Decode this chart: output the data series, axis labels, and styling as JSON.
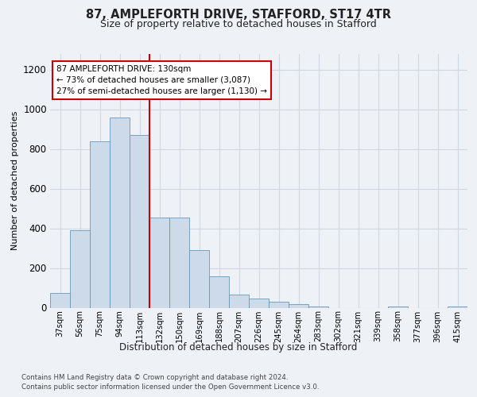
{
  "title_line1": "87, AMPLEFORTH DRIVE, STAFFORD, ST17 4TR",
  "title_line2": "Size of property relative to detached houses in Stafford",
  "xlabel": "Distribution of detached houses by size in Stafford",
  "ylabel": "Number of detached properties",
  "categories": [
    "37sqm",
    "56sqm",
    "75sqm",
    "94sqm",
    "113sqm",
    "132sqm",
    "150sqm",
    "169sqm",
    "188sqm",
    "207sqm",
    "226sqm",
    "245sqm",
    "264sqm",
    "283sqm",
    "302sqm",
    "321sqm",
    "339sqm",
    "358sqm",
    "377sqm",
    "396sqm",
    "415sqm"
  ],
  "values": [
    75,
    390,
    840,
    960,
    870,
    455,
    455,
    290,
    160,
    65,
    47,
    30,
    20,
    8,
    0,
    0,
    0,
    8,
    0,
    0,
    8
  ],
  "bar_color": "#ccdaea",
  "bar_edge_color": "#6699bb",
  "vline_color": "#cc0000",
  "vline_index": 4.5,
  "annotation_text": "87 AMPLEFORTH DRIVE: 130sqm\n← 73% of detached houses are smaller (3,087)\n27% of semi-detached houses are larger (1,130) →",
  "annotation_box_facecolor": "#ffffff",
  "annotation_box_edgecolor": "#cc0000",
  "ylim": [
    0,
    1280
  ],
  "yticks": [
    0,
    200,
    400,
    600,
    800,
    1000,
    1200
  ],
  "footer_line1": "Contains HM Land Registry data © Crown copyright and database right 2024.",
  "footer_line2": "Contains public sector information licensed under the Open Government Licence v3.0.",
  "bg_color": "#eef2f7",
  "grid_color": "#d0d8e4"
}
